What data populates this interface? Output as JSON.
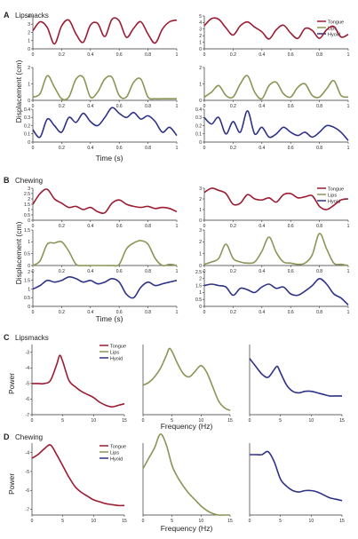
{
  "panels": {
    "A": {
      "letter": "A",
      "label": "Lipsmacks"
    },
    "B": {
      "letter": "B",
      "label": "Chewing"
    },
    "C": {
      "letter": "C",
      "label": "Lipsmacks"
    },
    "D": {
      "letter": "D",
      "label": "Chewing"
    }
  },
  "legend": [
    "Tongue",
    "Lips",
    "Hyoid"
  ],
  "colors": {
    "Tongue": "#9b1b32",
    "Lips": "#8a9556",
    "Hyoid": "#2e3287"
  },
  "time_axis": {
    "label": "Time (s)",
    "ticks": [
      "0",
      "0.2",
      "0.4",
      "0.6",
      "0.8",
      "1"
    ]
  },
  "displacement_label": "Displacement (cm)",
  "frequency_axis": {
    "label": "Frequency (Hz)",
    "ticks": [
      "0",
      "5",
      "10",
      "15"
    ]
  },
  "power_label": "Power",
  "chart_data": [
    {
      "panel": "A",
      "type": "line",
      "column": "left",
      "x": [
        0,
        0.05,
        0.1,
        0.15,
        0.2,
        0.25,
        0.3,
        0.35,
        0.4,
        0.45,
        0.5,
        0.55,
        0.6,
        0.65,
        0.7,
        0.75,
        0.8,
        0.85,
        0.9,
        0.95,
        1
      ],
      "series": [
        {
          "name": "Tongue",
          "ylim": [
            0,
            4
          ],
          "yticks": [
            0,
            1,
            2,
            3,
            4
          ],
          "values": [
            2.2,
            3.3,
            2.6,
            0.6,
            2.8,
            3.5,
            1.8,
            0.8,
            2.9,
            3.1,
            1.5,
            3.6,
            3.4,
            1.4,
            2.5,
            3.3,
            1.8,
            0.7,
            2.4,
            3.3,
            3.5
          ]
        },
        {
          "name": "Lips",
          "ylim": [
            0,
            2
          ],
          "yticks": [
            0,
            1,
            2
          ],
          "values": [
            0.2,
            0.4,
            1.5,
            0.8,
            0.1,
            0.2,
            1.3,
            1.4,
            0.2,
            0.5,
            1.3,
            1.4,
            0.3,
            0.2,
            1.1,
            1.3,
            0.2,
            0.1,
            0.1,
            0.1,
            0.1
          ]
        },
        {
          "name": "Hyoid",
          "ylim": [
            0,
            0.4
          ],
          "yticks": [
            0,
            0.1,
            0.2,
            0.3,
            0.4
          ],
          "values": [
            0.15,
            0.06,
            0.28,
            0.2,
            0.12,
            0.3,
            0.24,
            0.35,
            0.25,
            0.2,
            0.3,
            0.42,
            0.35,
            0.3,
            0.36,
            0.28,
            0.32,
            0.25,
            0.12,
            0.18,
            0.08
          ]
        }
      ]
    },
    {
      "panel": "A",
      "type": "line",
      "column": "right",
      "x": [
        0,
        0.05,
        0.1,
        0.15,
        0.2,
        0.25,
        0.3,
        0.35,
        0.4,
        0.45,
        0.5,
        0.55,
        0.6,
        0.65,
        0.7,
        0.75,
        0.8,
        0.85,
        0.9,
        0.95,
        1
      ],
      "series": [
        {
          "name": "Tongue",
          "ylim": [
            0,
            5
          ],
          "yticks": [
            0,
            1,
            2,
            3,
            4,
            5
          ],
          "values": [
            3.5,
            4.6,
            4.5,
            3.2,
            2.1,
            3.5,
            4.1,
            3.3,
            2.6,
            1.5,
            2.9,
            3.6,
            2.4,
            1.6,
            3.1,
            2.8,
            1.6,
            2.9,
            3.4,
            1.8,
            2.2
          ]
        },
        {
          "name": "Lips",
          "ylim": [
            0,
            2
          ],
          "yticks": [
            0,
            1,
            2
          ],
          "values": [
            0.2,
            0.5,
            0.9,
            0.3,
            0.2,
            1.0,
            1.5,
            0.5,
            0.1,
            0.9,
            1.1,
            0.4,
            0.2,
            0.8,
            1.0,
            0.3,
            0.2,
            0.7,
            1.2,
            0.3,
            0.2
          ]
        },
        {
          "name": "Hyoid",
          "ylim": [
            0,
            0.4
          ],
          "yticks": [
            0,
            0.1,
            0.2,
            0.3,
            0.4
          ],
          "values": [
            0.3,
            0.22,
            0.3,
            0.1,
            0.25,
            0.12,
            0.38,
            0.1,
            0.18,
            0.06,
            0.1,
            0.18,
            0.12,
            0.08,
            0.12,
            0.06,
            0.12,
            0.2,
            0.18,
            0.12,
            0.02
          ]
        }
      ]
    },
    {
      "panel": "B",
      "type": "line",
      "column": "left",
      "x": [
        0,
        0.05,
        0.1,
        0.15,
        0.2,
        0.25,
        0.3,
        0.35,
        0.4,
        0.45,
        0.5,
        0.55,
        0.6,
        0.65,
        0.7,
        0.75,
        0.8,
        0.85,
        0.9,
        0.95,
        1
      ],
      "series": [
        {
          "name": "Tongue",
          "ylim": [
            0,
            3
          ],
          "yticks": [
            0,
            0.5,
            1,
            1.5,
            2,
            2.5,
            3
          ],
          "values": [
            1.5,
            2.5,
            2.9,
            2.0,
            1.6,
            1.2,
            1.3,
            1.0,
            1.2,
            0.8,
            0.7,
            1.6,
            1.9,
            1.5,
            1.3,
            1.2,
            1.3,
            1.1,
            1.2,
            1.1,
            0.8
          ]
        },
        {
          "name": "Lips",
          "ylim": [
            0,
            1.5
          ],
          "yticks": [
            0,
            0.5,
            1,
            1.5
          ],
          "values": [
            0.0,
            0.2,
            0.9,
            0.95,
            1.0,
            0.6,
            0.05,
            0.0,
            0.0,
            0.0,
            0.0,
            0.0,
            0.05,
            0.7,
            0.95,
            1.05,
            0.9,
            0.3,
            0.0,
            0.05,
            0.0
          ]
        },
        {
          "name": "Hyoid",
          "ylim": [
            0,
            2
          ],
          "yticks": [
            0,
            0.5,
            1,
            1.5,
            2
          ],
          "values": [
            1.0,
            1.2,
            1.5,
            1.4,
            1.5,
            1.7,
            1.6,
            1.4,
            1.5,
            1.3,
            1.4,
            1.6,
            1.4,
            0.7,
            0.5,
            1.1,
            1.4,
            1.2,
            1.3,
            1.4,
            1.5
          ]
        }
      ]
    },
    {
      "panel": "B",
      "type": "line",
      "column": "right",
      "x": [
        0,
        0.05,
        0.1,
        0.15,
        0.2,
        0.25,
        0.3,
        0.35,
        0.4,
        0.45,
        0.5,
        0.55,
        0.6,
        0.65,
        0.7,
        0.75,
        0.8,
        0.85,
        0.9,
        0.95,
        1
      ],
      "series": [
        {
          "name": "Tongue",
          "ylim": [
            0,
            3
          ],
          "yticks": [
            0,
            1,
            2,
            3
          ],
          "values": [
            2.6,
            3.0,
            2.8,
            2.5,
            1.5,
            1.6,
            2.4,
            2.0,
            1.9,
            2.1,
            1.7,
            2.4,
            2.5,
            2.1,
            2.2,
            2.3,
            1.3,
            1.0,
            1.4,
            1.9,
            2.0
          ]
        },
        {
          "name": "Lips",
          "ylim": [
            0,
            3
          ],
          "yticks": [
            0,
            1,
            2,
            3
          ],
          "values": [
            0.1,
            0.3,
            0.6,
            1.8,
            0.6,
            0.3,
            0.2,
            0.3,
            1.2,
            2.4,
            1.1,
            0.3,
            0.2,
            0.1,
            0.2,
            0.9,
            2.7,
            1.4,
            0.2,
            0.1,
            0.0
          ]
        },
        {
          "name": "Hyoid",
          "ylim": [
            0,
            2.5
          ],
          "yticks": [
            0,
            0.5,
            1,
            1.5,
            2,
            2.5
          ],
          "values": [
            1.5,
            1.6,
            1.5,
            1.4,
            0.8,
            1.3,
            1.2,
            1.0,
            1.4,
            1.6,
            1.3,
            1.4,
            0.9,
            0.8,
            1.1,
            1.5,
            2.0,
            1.6,
            0.9,
            0.6,
            0.1
          ]
        }
      ]
    },
    {
      "panel": "C",
      "type": "line",
      "x": [
        0,
        1,
        2,
        3,
        4,
        4.5,
        5,
        6,
        7,
        8,
        9,
        10,
        11,
        12,
        13,
        14,
        15
      ],
      "series": [
        {
          "name": "Tongue",
          "xlim": [
            0,
            15
          ],
          "ylim": [
            -7,
            -2.5
          ],
          "yticks": [
            -7,
            -6,
            -5,
            -4,
            -3
          ],
          "values": [
            -5.0,
            -5.0,
            -5.0,
            -4.8,
            -3.8,
            -3.2,
            -3.6,
            -4.8,
            -5.2,
            -5.5,
            -5.7,
            -5.9,
            -6.2,
            -6.4,
            -6.5,
            -6.4,
            -6.3
          ]
        },
        {
          "name": "Lips",
          "xlim": [
            0,
            15
          ],
          "ylim": [
            -7.5,
            -2.5
          ],
          "yticks": [],
          "values": [
            -5.4,
            -5.2,
            -4.8,
            -4.2,
            -3.3,
            -2.8,
            -3.0,
            -3.9,
            -4.6,
            -4.8,
            -4.4,
            -4.0,
            -4.5,
            -5.5,
            -6.5,
            -7.0,
            -7.2
          ]
        },
        {
          "name": "Hyoid",
          "xlim": [
            0,
            15
          ],
          "ylim": [
            -7,
            -2.5
          ],
          "yticks": [],
          "values": [
            -3.4,
            -3.9,
            -4.4,
            -4.6,
            -4.1,
            -3.9,
            -4.3,
            -5.1,
            -5.5,
            -5.6,
            -5.5,
            -5.5,
            -5.6,
            -5.7,
            -5.8,
            -5.8,
            -5.8
          ]
        }
      ]
    },
    {
      "panel": "D",
      "type": "line",
      "x": [
        0,
        1,
        2,
        3,
        4,
        5,
        6,
        7,
        8,
        9,
        10,
        11,
        12,
        13,
        14,
        15
      ],
      "series": [
        {
          "name": "Tongue",
          "xlim": [
            0,
            15
          ],
          "ylim": [
            -7.3,
            -3.5
          ],
          "yticks": [
            -7,
            -6,
            -5,
            -4
          ],
          "values": [
            -4.3,
            -4.1,
            -3.8,
            -3.6,
            -4.1,
            -4.7,
            -5.3,
            -5.8,
            -6.1,
            -6.3,
            -6.5,
            -6.6,
            -6.7,
            -6.75,
            -6.8,
            -6.8
          ]
        },
        {
          "name": "Lips",
          "xlim": [
            0,
            15
          ],
          "ylim": [
            -8.3,
            -3.5
          ],
          "yticks": [],
          "values": [
            -5.2,
            -4.5,
            -3.8,
            -2.9,
            -3.6,
            -5.0,
            -5.8,
            -6.4,
            -6.9,
            -7.3,
            -7.7,
            -8.0,
            -8.2,
            -8.3,
            -8.3,
            -8.3
          ]
        },
        {
          "name": "Hyoid",
          "xlim": [
            0,
            15
          ],
          "ylim": [
            -8,
            -3
          ],
          "yticks": [],
          "values": [
            -3.8,
            -3.8,
            -3.8,
            -3.6,
            -4.3,
            -5.5,
            -6.0,
            -6.3,
            -6.4,
            -6.3,
            -6.3,
            -6.4,
            -6.6,
            -6.8,
            -6.9,
            -7.0
          ]
        }
      ]
    }
  ]
}
